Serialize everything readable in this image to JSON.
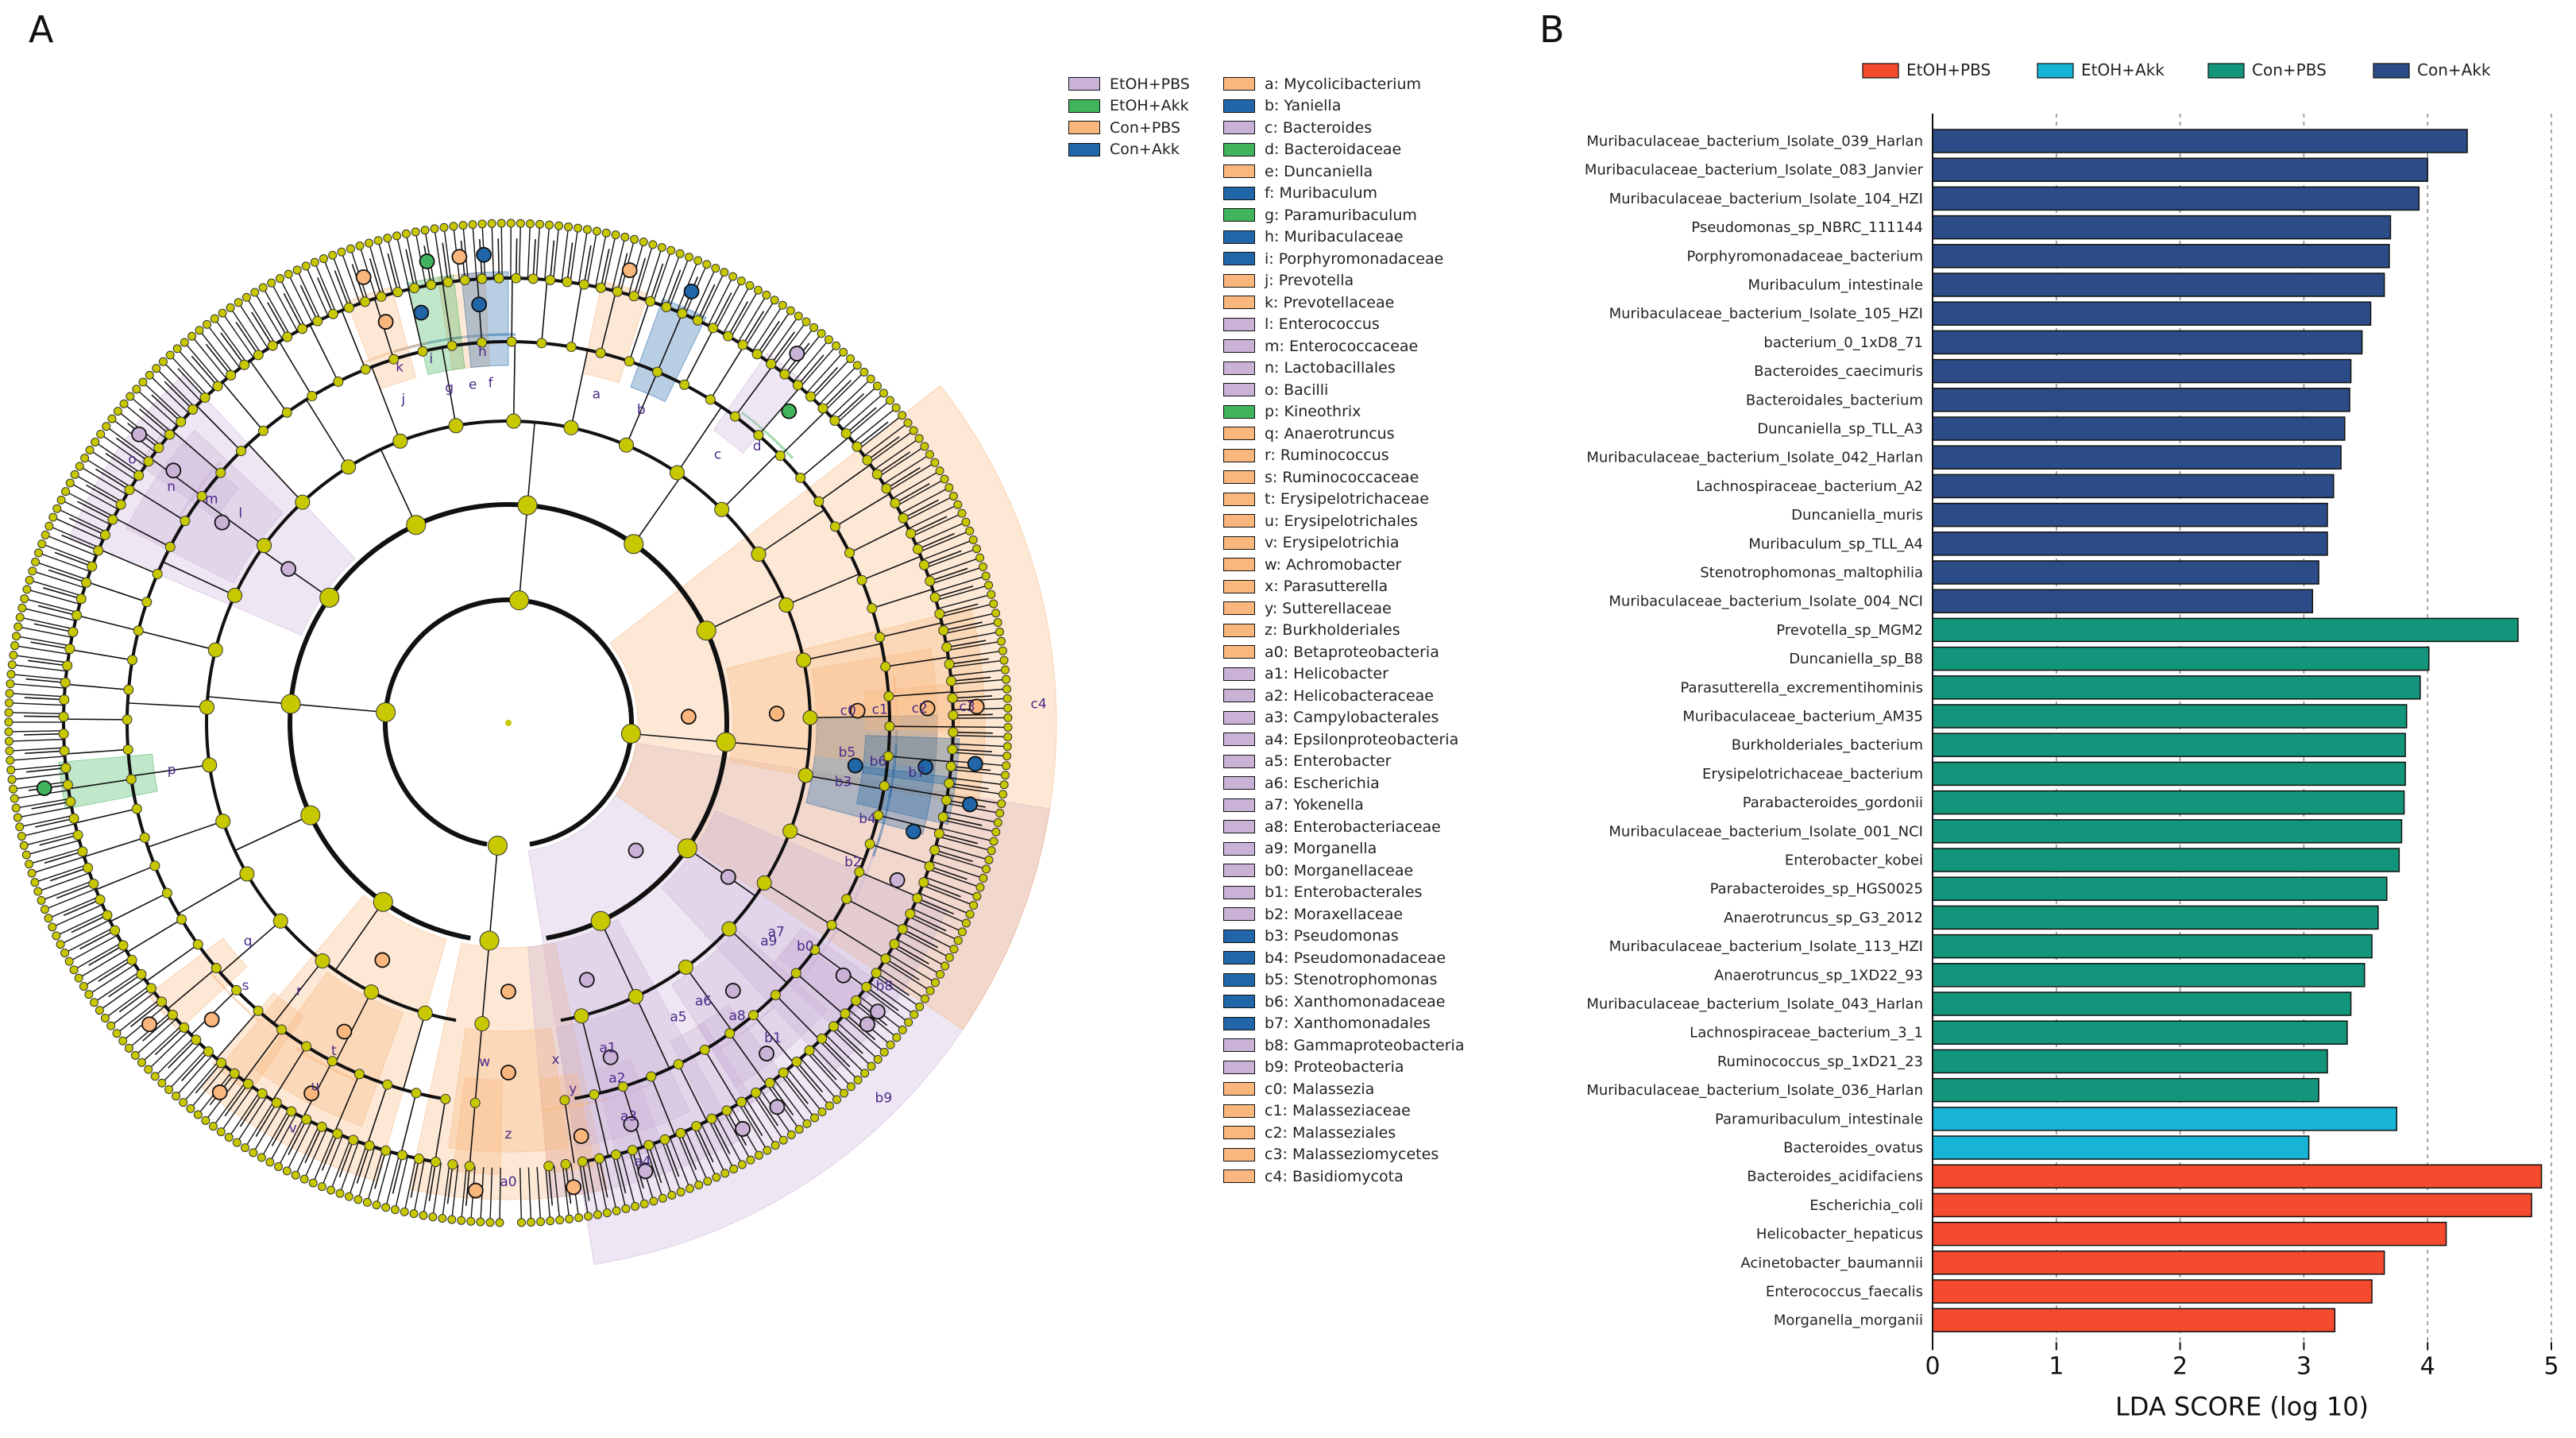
{
  "panels": {
    "a": "A",
    "b": "B"
  },
  "colors": {
    "EtOH+PBS": "#c9b2d6",
    "EtOH+Akk": "#3fb45c",
    "Con+PBS": "#f9b67d",
    "Con+Akk": "#2066a8",
    "node_default": "#c8c800",
    "lda_EtOH+PBS": "#f44a2e",
    "lda_EtOH+Akk": "#18b4d6",
    "lda_Con+PBS": "#12957a",
    "lda_Con+Akk": "#2b4c86"
  },
  "cladogram": {
    "legend_groups": [
      {
        "label": "EtOH+PBS",
        "group": "EtOH+PBS"
      },
      {
        "label": "EtOH+Akk",
        "group": "EtOH+Akk"
      },
      {
        "label": "Con+PBS",
        "group": "Con+PBS"
      },
      {
        "label": "Con+Akk",
        "group": "Con+Akk"
      }
    ],
    "taxa": [
      {
        "code": "a",
        "label": "a: Mycolicibacterium",
        "group": "Con+PBS",
        "angle": 15,
        "level": 6
      },
      {
        "code": "b",
        "label": "b: Yaniella",
        "group": "Con+Akk",
        "angle": 23,
        "level": 6
      },
      {
        "code": "c",
        "label": "c: Bacteroides",
        "group": "EtOH+PBS",
        "angle": 38,
        "level": 6
      },
      {
        "code": "d",
        "label": "d: Bacteroidaceae",
        "group": "EtOH+Akk",
        "angle": 42,
        "level": 5
      },
      {
        "code": "e",
        "label": "e: Duncaniella",
        "group": "Con+PBS",
        "angle": -6,
        "level": 6
      },
      {
        "code": "f",
        "label": "f: Muribaculum",
        "group": "Con+Akk",
        "angle": -3,
        "level": 6
      },
      {
        "code": "g",
        "label": "g: Paramuribaculum",
        "group": "EtOH+Akk",
        "angle": -10,
        "level": 6
      },
      {
        "code": "h",
        "label": "h: Muribaculaceae",
        "group": "Con+Akk",
        "angle": -4,
        "level": 5
      },
      {
        "code": "i",
        "label": "i: Porphyromonadaceae",
        "group": "Con+Akk",
        "angle": -12,
        "level": 5
      },
      {
        "code": "j",
        "label": "j: Prevotella",
        "group": "Con+PBS",
        "angle": -18,
        "level": 6
      },
      {
        "code": "k",
        "label": "k: Prevotellaceae",
        "group": "Con+PBS",
        "angle": -17,
        "level": 5
      },
      {
        "code": "l",
        "label": "l: Enterococcus",
        "group": "EtOH+PBS",
        "angle": -52,
        "level": 6
      },
      {
        "code": "m",
        "label": "m: Enterococcaceae",
        "group": "EtOH+PBS",
        "angle": -53,
        "level": 5
      },
      {
        "code": "n",
        "label": "n: Lactobacillales",
        "group": "EtOH+PBS",
        "angle": -55,
        "level": 4
      },
      {
        "code": "o",
        "label": "o: Bacilli",
        "group": "EtOH+PBS",
        "angle": -55,
        "level": 3
      },
      {
        "code": "p",
        "label": "p: Kineothrix",
        "group": "EtOH+Akk",
        "angle": -98,
        "level": 6
      },
      {
        "code": "q",
        "label": "q: Anaerotruncus",
        "group": "Con+PBS",
        "angle": -130,
        "level": 6
      },
      {
        "code": "r",
        "label": "r: Ruminococcus",
        "group": "Con+PBS",
        "angle": -142,
        "level": 6
      },
      {
        "code": "s",
        "label": "s: Ruminococcaceae",
        "group": "Con+PBS",
        "angle": -135,
        "level": 5
      },
      {
        "code": "t",
        "label": "t: Erysipelotrichaceae",
        "group": "Con+PBS",
        "angle": -152,
        "level": 5
      },
      {
        "code": "u",
        "label": "u: Erysipelotrichales",
        "group": "Con+PBS",
        "angle": -152,
        "level": 4
      },
      {
        "code": "v",
        "label": "v: Erysipelotrichia",
        "group": "Con+PBS",
        "angle": -152,
        "level": 3
      },
      {
        "code": "w",
        "label": "w: Achromobacter",
        "group": "Con+PBS",
        "angle": -176,
        "level": 6
      },
      {
        "code": "x",
        "label": "x: Parasutterella",
        "group": "Con+PBS",
        "angle": 172,
        "level": 6
      },
      {
        "code": "y",
        "label": "y: Sutterellaceae",
        "group": "Con+PBS",
        "angle": 170,
        "level": 5
      },
      {
        "code": "z",
        "label": "z: Burkholderiales",
        "group": "Con+PBS",
        "angle": 180,
        "level": 4
      },
      {
        "code": "a0",
        "label": "a0: Betaproteobacteria",
        "group": "Con+PBS",
        "angle": 180,
        "level": 3
      },
      {
        "code": "a1",
        "label": "a1: Helicobacter",
        "group": "EtOH+PBS",
        "angle": 163,
        "level": 6
      },
      {
        "code": "a2",
        "label": "a2: Helicobacteraceae",
        "group": "EtOH+PBS",
        "angle": 163,
        "level": 5
      },
      {
        "code": "a3",
        "label": "a3: Campylobacterales",
        "group": "EtOH+PBS",
        "angle": 163,
        "level": 4
      },
      {
        "code": "a4",
        "label": "a4: Epsilonproteobacteria",
        "group": "EtOH+PBS",
        "angle": 163,
        "level": 3
      },
      {
        "code": "a5",
        "label": "a5: Enterobacter",
        "group": "EtOH+PBS",
        "angle": 150,
        "level": 6
      },
      {
        "code": "a6",
        "label": "a6: Escherichia",
        "group": "EtOH+PBS",
        "angle": 145,
        "level": 6
      },
      {
        "code": "a7",
        "label": "a7: Yokenella",
        "group": "EtOH+PBS",
        "angle": 128,
        "level": 6
      },
      {
        "code": "a8",
        "label": "a8: Enterobacteriaceae",
        "group": "EtOH+PBS",
        "angle": 142,
        "level": 5
      },
      {
        "code": "a9",
        "label": "a9: Morganella",
        "group": "EtOH+PBS",
        "angle": 130,
        "level": 6
      },
      {
        "code": "b0",
        "label": "b0: Morganellaceae",
        "group": "EtOH+PBS",
        "angle": 127,
        "level": 5
      },
      {
        "code": "b1",
        "label": "b1: Enterobacterales",
        "group": "EtOH+PBS",
        "angle": 140,
        "level": 4
      },
      {
        "code": "b2",
        "label": "b2: Moraxellaceae",
        "group": "EtOH+PBS",
        "angle": 112,
        "level": 5
      },
      {
        "code": "b3",
        "label": "b3: Pseudomonas",
        "group": "Con+Akk",
        "angle": 100,
        "level": 6
      },
      {
        "code": "b4",
        "label": "b4: Pseudomonadaceae",
        "group": "Con+Akk",
        "angle": 105,
        "level": 5
      },
      {
        "code": "b5",
        "label": "b5: Stenotrophomonas",
        "group": "Con+Akk",
        "angle": 95,
        "level": 6
      },
      {
        "code": "b6",
        "label": "b6: Xanthomonadaceae",
        "group": "Con+Akk",
        "angle": 96,
        "level": 5
      },
      {
        "code": "b7",
        "label": "b7: Xanthomonadales",
        "group": "Con+Akk",
        "angle": 97,
        "level": 4
      },
      {
        "code": "b8",
        "label": "b8: Gammaproteobacteria",
        "group": "EtOH+PBS",
        "angle": 125,
        "level": 3
      },
      {
        "code": "b9",
        "label": "b9: Proteobacteria",
        "group": "EtOH+PBS",
        "angle": 135,
        "level": 2
      },
      {
        "code": "c0",
        "label": "c0: Malassezia",
        "group": "Con+PBS",
        "angle": 88,
        "level": 6
      },
      {
        "code": "c1",
        "label": "c1: Malasseziaceae",
        "group": "Con+PBS",
        "angle": 88,
        "level": 5
      },
      {
        "code": "c2",
        "label": "c2: Malasseziales",
        "group": "Con+PBS",
        "angle": 88,
        "level": 4
      },
      {
        "code": "c3",
        "label": "c3: Malasseziomycetes",
        "group": "Con+PBS",
        "angle": 88,
        "level": 3
      },
      {
        "code": "c4",
        "label": "c4: Basidiomycota",
        "group": "Con+PBS",
        "angle": 88,
        "level": 2
      }
    ]
  },
  "chart_data": {
    "type": "bar",
    "orientation": "horizontal",
    "xlabel": "LDA SCORE (log 10)",
    "xlim": [
      0,
      5
    ],
    "xticks": [
      0,
      1,
      2,
      3,
      4,
      5
    ],
    "legend": [
      {
        "label": "EtOH+PBS",
        "group": "EtOH+PBS"
      },
      {
        "label": "EtOH+Akk",
        "group": "EtOH+Akk"
      },
      {
        "label": "Con+PBS",
        "group": "Con+PBS"
      },
      {
        "label": "Con+Akk",
        "group": "Con+Akk"
      }
    ],
    "bars": [
      {
        "name": "Muribaculaceae_bacterium_Isolate_039_Harlan",
        "value": 4.32,
        "group": "Con+Akk"
      },
      {
        "name": "Muribaculaceae_bacterium_Isolate_083_Janvier",
        "value": 4.0,
        "group": "Con+Akk"
      },
      {
        "name": "Muribaculaceae_bacterium_Isolate_104_HZI",
        "value": 3.93,
        "group": "Con+Akk"
      },
      {
        "name": "Pseudomonas_sp_NBRC_111144",
        "value": 3.7,
        "group": "Con+Akk"
      },
      {
        "name": "Porphyromonadaceae_bacterium",
        "value": 3.69,
        "group": "Con+Akk"
      },
      {
        "name": "Muribaculum_intestinale",
        "value": 3.65,
        "group": "Con+Akk"
      },
      {
        "name": "Muribaculaceae_bacterium_Isolate_105_HZI",
        "value": 3.54,
        "group": "Con+Akk"
      },
      {
        "name": "bacterium_0_1xD8_71",
        "value": 3.47,
        "group": "Con+Akk"
      },
      {
        "name": "Bacteroides_caecimuris",
        "value": 3.38,
        "group": "Con+Akk"
      },
      {
        "name": "Bacteroidales_bacterium",
        "value": 3.37,
        "group": "Con+Akk"
      },
      {
        "name": "Duncaniella_sp_TLL_A3",
        "value": 3.33,
        "group": "Con+Akk"
      },
      {
        "name": "Muribaculaceae_bacterium_Isolate_042_Harlan",
        "value": 3.3,
        "group": "Con+Akk"
      },
      {
        "name": "Lachnospiraceae_bacterium_A2",
        "value": 3.24,
        "group": "Con+Akk"
      },
      {
        "name": "Duncaniella_muris",
        "value": 3.19,
        "group": "Con+Akk"
      },
      {
        "name": "Muribaculum_sp_TLL_A4",
        "value": 3.19,
        "group": "Con+Akk"
      },
      {
        "name": "Stenotrophomonas_maltophilia",
        "value": 3.12,
        "group": "Con+Akk"
      },
      {
        "name": "Muribaculaceae_bacterium_Isolate_004_NCI",
        "value": 3.07,
        "group": "Con+Akk"
      },
      {
        "name": "Prevotella_sp_MGM2",
        "value": 4.73,
        "group": "Con+PBS"
      },
      {
        "name": "Duncaniella_sp_B8",
        "value": 4.01,
        "group": "Con+PBS"
      },
      {
        "name": "Parasutterella_excrementihominis",
        "value": 3.94,
        "group": "Con+PBS"
      },
      {
        "name": "Muribaculaceae_bacterium_AM35",
        "value": 3.83,
        "group": "Con+PBS"
      },
      {
        "name": "Burkholderiales_bacterium",
        "value": 3.82,
        "group": "Con+PBS"
      },
      {
        "name": "Erysipelotrichaceae_bacterium",
        "value": 3.82,
        "group": "Con+PBS"
      },
      {
        "name": "Parabacteroides_gordonii",
        "value": 3.81,
        "group": "Con+PBS"
      },
      {
        "name": "Muribaculaceae_bacterium_Isolate_001_NCI",
        "value": 3.79,
        "group": "Con+PBS"
      },
      {
        "name": "Enterobacter_kobei",
        "value": 3.77,
        "group": "Con+PBS"
      },
      {
        "name": "Parabacteroides_sp_HGS0025",
        "value": 3.67,
        "group": "Con+PBS"
      },
      {
        "name": "Anaerotruncus_sp_G3_2012",
        "value": 3.6,
        "group": "Con+PBS"
      },
      {
        "name": "Muribaculaceae_bacterium_Isolate_113_HZI",
        "value": 3.55,
        "group": "Con+PBS"
      },
      {
        "name": "Anaerotruncus_sp_1XD22_93",
        "value": 3.49,
        "group": "Con+PBS"
      },
      {
        "name": "Muribaculaceae_bacterium_Isolate_043_Harlan",
        "value": 3.38,
        "group": "Con+PBS"
      },
      {
        "name": "Lachnospiraceae_bacterium_3_1",
        "value": 3.35,
        "group": "Con+PBS"
      },
      {
        "name": "Ruminococcus_sp_1xD21_23",
        "value": 3.19,
        "group": "Con+PBS"
      },
      {
        "name": "Muribaculaceae_bacterium_Isolate_036_Harlan",
        "value": 3.12,
        "group": "Con+PBS"
      },
      {
        "name": "Paramuribaculum_intestinale",
        "value": 3.75,
        "group": "EtOH+Akk"
      },
      {
        "name": "Bacteroides_ovatus",
        "value": 3.04,
        "group": "EtOH+Akk"
      },
      {
        "name": "Bacteroides_acidifaciens",
        "value": 4.92,
        "group": "EtOH+PBS"
      },
      {
        "name": "Escherichia_coli",
        "value": 4.84,
        "group": "EtOH+PBS"
      },
      {
        "name": "Helicobacter_hepaticus",
        "value": 4.15,
        "group": "EtOH+PBS"
      },
      {
        "name": "Acinetobacter_baumannii",
        "value": 3.65,
        "group": "EtOH+PBS"
      },
      {
        "name": "Enterococcus_faecalis",
        "value": 3.55,
        "group": "EtOH+PBS"
      },
      {
        "name": "Morganella_morganii",
        "value": 3.25,
        "group": "EtOH+PBS"
      }
    ]
  }
}
